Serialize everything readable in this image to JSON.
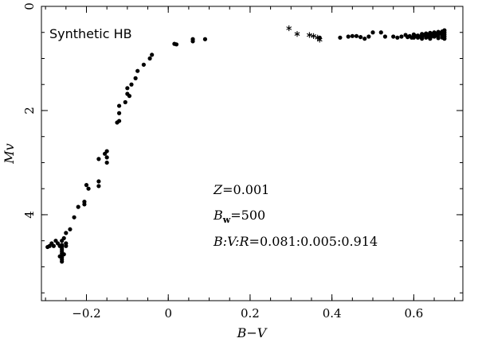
{
  "chart_data": {
    "type": "scatter",
    "label": "Synthetic HB",
    "xlabel": "B−V",
    "ylabel": "Mv",
    "xlim": [
      -0.31,
      0.72
    ],
    "ylim": [
      5.65,
      0
    ],
    "y_inverted": true,
    "xticks": [
      -0.2,
      0,
      0.2,
      0.4,
      0.6
    ],
    "xtick_labels": [
      "−0.2",
      "0",
      "0.2",
      "0.4",
      "0.6"
    ],
    "yticks": [
      0,
      2,
      4
    ],
    "ytick_labels": [
      "0",
      "2",
      "4"
    ],
    "annotations": {
      "z": {
        "var": "Z",
        "val": "=0.001"
      },
      "bw": {
        "var": "B",
        "sub": "w",
        "val": "=500"
      },
      "ratio": {
        "var": "B:V:R",
        "val": "=0.081:0.005:0.914"
      }
    },
    "series": [
      {
        "marker": "dot",
        "points": [
          [
            0.09,
            0.63
          ],
          [
            0.06,
            0.63
          ],
          [
            0.06,
            0.67
          ],
          [
            0.02,
            0.73
          ],
          [
            0.015,
            0.72
          ],
          [
            -0.04,
            0.93
          ],
          [
            -0.045,
            1.0
          ],
          [
            -0.06,
            1.12
          ],
          [
            -0.075,
            1.24
          ],
          [
            -0.08,
            1.38
          ],
          [
            -0.09,
            1.5
          ],
          [
            -0.1,
            1.57
          ],
          [
            -0.1,
            1.68
          ],
          [
            -0.095,
            1.72
          ],
          [
            -0.105,
            1.84
          ],
          [
            -0.12,
            1.91
          ],
          [
            -0.12,
            2.05
          ],
          [
            -0.12,
            2.2
          ],
          [
            -0.125,
            2.23
          ],
          [
            -0.15,
            2.78
          ],
          [
            -0.155,
            2.83
          ],
          [
            -0.15,
            2.9
          ],
          [
            -0.15,
            3.0
          ],
          [
            -0.17,
            2.93
          ],
          [
            -0.17,
            3.36
          ],
          [
            -0.17,
            3.45
          ],
          [
            -0.2,
            3.43
          ],
          [
            -0.195,
            3.5
          ],
          [
            -0.205,
            3.75
          ],
          [
            -0.205,
            3.8
          ],
          [
            -0.22,
            3.85
          ],
          [
            -0.23,
            4.05
          ],
          [
            -0.24,
            4.28
          ],
          [
            -0.25,
            4.35
          ],
          [
            -0.255,
            4.45
          ],
          [
            -0.26,
            4.5
          ],
          [
            -0.27,
            4.55
          ],
          [
            -0.265,
            4.6
          ],
          [
            -0.28,
            4.6
          ],
          [
            -0.29,
            4.6
          ],
          [
            -0.295,
            4.62
          ],
          [
            -0.285,
            4.55
          ],
          [
            -0.275,
            4.5
          ],
          [
            -0.26,
            4.58
          ],
          [
            -0.26,
            4.62
          ],
          [
            -0.26,
            4.66
          ],
          [
            -0.26,
            4.7
          ],
          [
            -0.26,
            4.74
          ],
          [
            -0.26,
            4.78
          ],
          [
            -0.26,
            4.82
          ],
          [
            -0.26,
            4.86
          ],
          [
            -0.26,
            4.9
          ],
          [
            -0.255,
            4.76
          ],
          [
            -0.25,
            4.6
          ],
          [
            -0.25,
            4.55
          ],
          [
            -0.265,
            4.8
          ],
          [
            0.37,
            0.6
          ],
          [
            0.42,
            0.6
          ],
          [
            0.44,
            0.58
          ],
          [
            0.45,
            0.57
          ],
          [
            0.46,
            0.57
          ],
          [
            0.47,
            0.59
          ],
          [
            0.48,
            0.62
          ],
          [
            0.49,
            0.58
          ],
          [
            0.5,
            0.5
          ],
          [
            0.52,
            0.5
          ],
          [
            0.53,
            0.58
          ],
          [
            0.55,
            0.58
          ],
          [
            0.56,
            0.6
          ],
          [
            0.57,
            0.58
          ],
          [
            0.58,
            0.55
          ],
          [
            0.59,
            0.57
          ],
          [
            0.6,
            0.54
          ],
          [
            0.6,
            0.6
          ],
          [
            0.61,
            0.56
          ],
          [
            0.61,
            0.6
          ],
          [
            0.62,
            0.53
          ],
          [
            0.62,
            0.58
          ],
          [
            0.62,
            0.62
          ],
          [
            0.63,
            0.52
          ],
          [
            0.63,
            0.56
          ],
          [
            0.63,
            0.6
          ],
          [
            0.64,
            0.51
          ],
          [
            0.64,
            0.55
          ],
          [
            0.64,
            0.59
          ],
          [
            0.64,
            0.62
          ],
          [
            0.65,
            0.5
          ],
          [
            0.65,
            0.54
          ],
          [
            0.65,
            0.58
          ],
          [
            0.66,
            0.49
          ],
          [
            0.66,
            0.53
          ],
          [
            0.66,
            0.57
          ],
          [
            0.66,
            0.61
          ],
          [
            0.67,
            0.48
          ],
          [
            0.67,
            0.52
          ],
          [
            0.67,
            0.56
          ],
          [
            0.67,
            0.6
          ],
          [
            0.675,
            0.46
          ],
          [
            0.675,
            0.5
          ],
          [
            0.675,
            0.54
          ],
          [
            0.675,
            0.58
          ],
          [
            0.675,
            0.62
          ],
          [
            0.655,
            0.56
          ],
          [
            0.645,
            0.57
          ],
          [
            0.635,
            0.58
          ],
          [
            0.625,
            0.55
          ],
          [
            0.615,
            0.58
          ],
          [
            0.605,
            0.57
          ],
          [
            0.595,
            0.6
          ],
          [
            0.585,
            0.59
          ],
          [
            0.665,
            0.51
          ],
          [
            0.655,
            0.52
          ],
          [
            0.645,
            0.53
          ],
          [
            0.635,
            0.54
          ]
        ]
      },
      {
        "marker": "asterisk",
        "points": [
          [
            0.295,
            0.42
          ],
          [
            0.315,
            0.53
          ],
          [
            0.345,
            0.55
          ],
          [
            0.355,
            0.57
          ],
          [
            0.365,
            0.6
          ],
          [
            0.37,
            0.64
          ]
        ]
      }
    ]
  }
}
